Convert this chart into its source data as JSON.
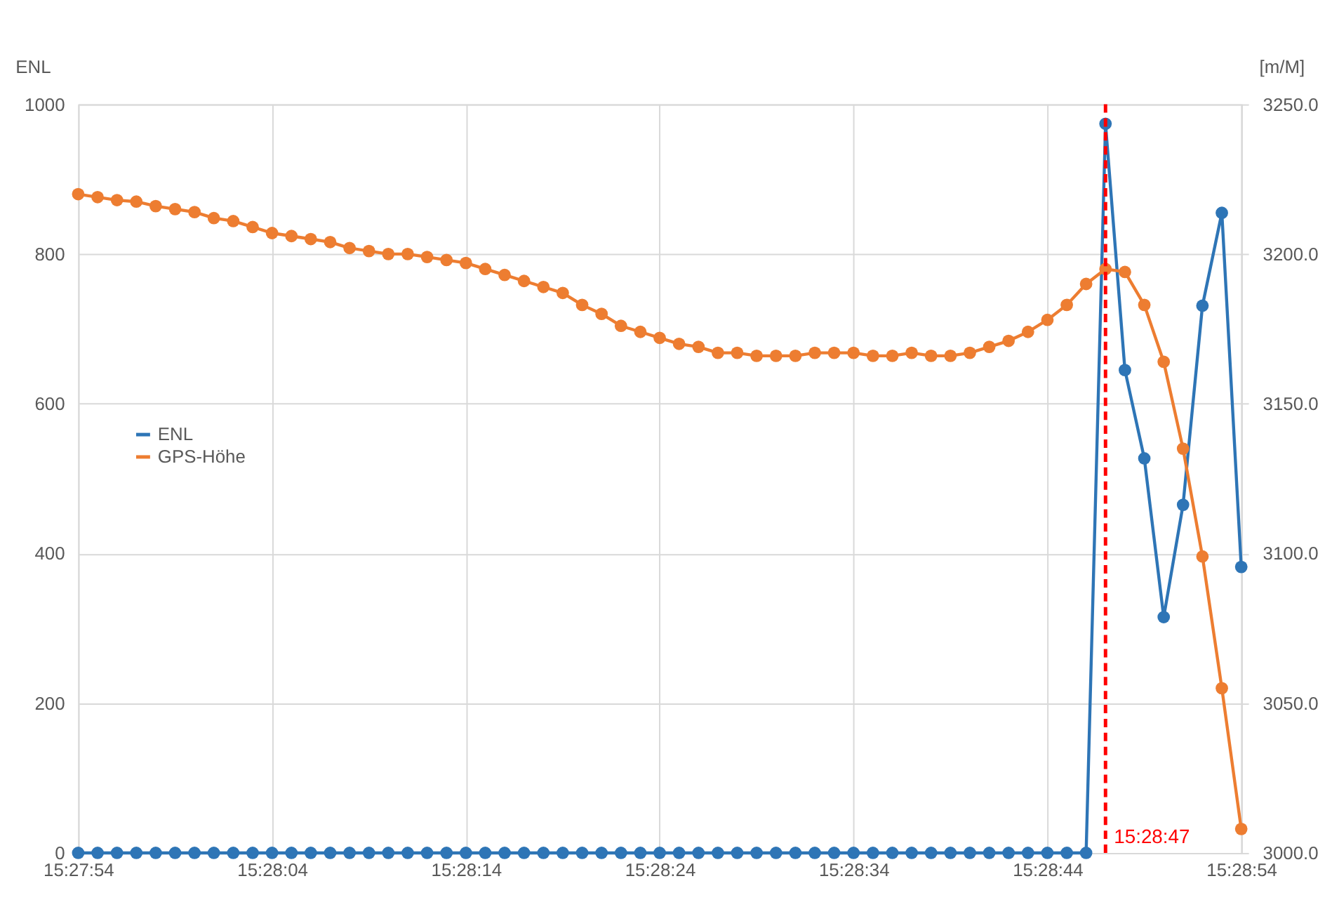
{
  "chart_data": {
    "type": "line",
    "x": [
      15.465,
      15.465278,
      15.465556,
      15.465833,
      15.466111,
      15.466389,
      15.466667,
      15.466944,
      15.467222,
      15.4675,
      15.467778,
      15.468056,
      15.468333,
      15.468611,
      15.468889,
      15.469167,
      15.469444,
      15.469722,
      15.47,
      15.470278,
      15.470556,
      15.470833,
      15.471111,
      15.471389,
      15.471667,
      15.471944,
      15.472222,
      15.4725,
      15.472778,
      15.473056,
      15.473333,
      15.473611,
      15.473889,
      15.474167,
      15.474444,
      15.474722,
      15.475,
      15.475278,
      15.475556,
      15.475833,
      15.476111,
      15.476389,
      15.476667,
      15.476944,
      15.477222,
      15.4775,
      15.477778,
      15.478056,
      15.478333,
      15.478611,
      15.478889,
      15.479167,
      15.479444,
      15.479722,
      15.48,
      15.480278,
      15.480556,
      15.480833,
      15.481111,
      15.481389,
      15.481667
    ],
    "series": [
      {
        "name": "ENL",
        "color": "#2e75b6",
        "values": [
          0,
          0,
          0,
          0,
          0,
          0,
          0,
          0,
          0,
          0,
          0,
          0,
          0,
          0,
          0,
          0,
          0,
          0,
          0,
          0,
          0,
          0,
          0,
          0,
          0,
          0,
          0,
          0,
          0,
          0,
          0,
          0,
          0,
          0,
          0,
          0,
          0,
          0,
          0,
          0,
          0,
          0,
          0,
          0,
          0,
          0,
          0,
          0,
          0,
          0,
          0,
          0,
          0,
          974,
          645,
          527,
          315,
          465,
          731,
          855,
          382
        ]
      },
      {
        "name": "GPS-Höhe",
        "color": "#ed7d31",
        "axis": "y2",
        "values": [
          3220,
          3219,
          3218,
          3217.5,
          3216,
          3215,
          3214,
          3212,
          3211,
          3209,
          3207,
          3206,
          3205,
          3204,
          3202,
          3201,
          3200,
          3200,
          3199,
          3198,
          3197,
          3195,
          3193,
          3191,
          3189,
          3187,
          3183,
          3180,
          3176,
          3174,
          3172,
          3170,
          3169,
          3167,
          3167,
          3166,
          3166,
          3166,
          3167,
          3167,
          3167,
          3166,
          3166,
          3167,
          3166,
          3166,
          3167,
          3169,
          3171,
          3174,
          3178,
          3183,
          3190,
          3195,
          3194,
          3183,
          3164,
          3135,
          3099,
          3055,
          3008
        ]
      }
    ],
    "ylabel": "ENL",
    "y2label": "[m/M]",
    "xlim": [
      15.465,
      15.481667
    ],
    "xticks": [
      {
        "value": 15.465,
        "label": "15:27:54"
      },
      {
        "value": 15.467778,
        "label": "15:28:04"
      },
      {
        "value": 15.470556,
        "label": "15:28:14"
      },
      {
        "value": 15.473333,
        "label": "15:28:24"
      },
      {
        "value": 15.476111,
        "label": "15:28:34"
      },
      {
        "value": 15.478889,
        "label": "15:28:44"
      },
      {
        "value": 15.481667,
        "label": "15:28:54"
      }
    ],
    "ylim": [
      0,
      1000
    ],
    "yticks": [
      0,
      200,
      400,
      600,
      800,
      1000
    ],
    "y2lim": [
      3000,
      3250
    ],
    "y2ticks": [
      {
        "value": 3000,
        "label": "3000.0"
      },
      {
        "value": 3050,
        "label": "3050.0"
      },
      {
        "value": 3100,
        "label": "3100.0"
      },
      {
        "value": 3150,
        "label": "3150.0"
      },
      {
        "value": 3200,
        "label": "3200.0"
      },
      {
        "value": 3250,
        "label": "3250.0"
      }
    ],
    "ref_lines": [
      {
        "axis": "x",
        "value": 15.479722,
        "label": "15:28:47",
        "color": "#ff0000",
        "line_style": "dashed"
      }
    ],
    "grid": true,
    "legend": "left",
    "marker": "circle",
    "line_style": "solid"
  }
}
